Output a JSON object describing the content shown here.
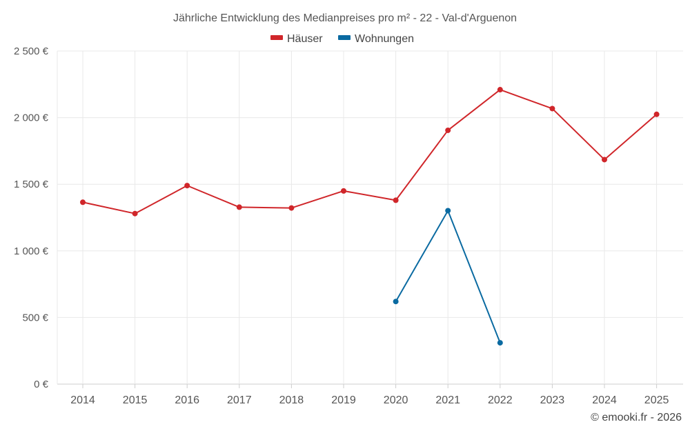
{
  "chart_data": {
    "type": "line",
    "title": "Jährliche Entwicklung des Medianpreises pro m² - 22 - Val-d'Arguenon",
    "categories": [
      "2014",
      "2015",
      "2016",
      "2017",
      "2018",
      "2019",
      "2020",
      "2021",
      "2022",
      "2023",
      "2024",
      "2025"
    ],
    "series": [
      {
        "name": "Häuser",
        "color": "#d0262a",
        "values": [
          1365,
          1280,
          1490,
          1328,
          1322,
          1450,
          1380,
          1905,
          2210,
          2068,
          1685,
          2025
        ]
      },
      {
        "name": "Wohnungen",
        "color": "#0a6aa1",
        "values": [
          null,
          null,
          null,
          null,
          null,
          null,
          620,
          1302,
          310,
          null,
          null,
          null
        ]
      }
    ],
    "yticks": [
      0,
      500,
      1000,
      1500,
      2000,
      2500
    ],
    "ytick_labels": [
      "0 €",
      "500 €",
      "1 000 €",
      "1 500 €",
      "2 000 €",
      "2 500 €"
    ],
    "ylim": [
      0,
      2500
    ],
    "xlabel": "",
    "ylabel": "",
    "grid": true,
    "legend_position": "top-center"
  },
  "credit": "© emooki.fr - 2026"
}
